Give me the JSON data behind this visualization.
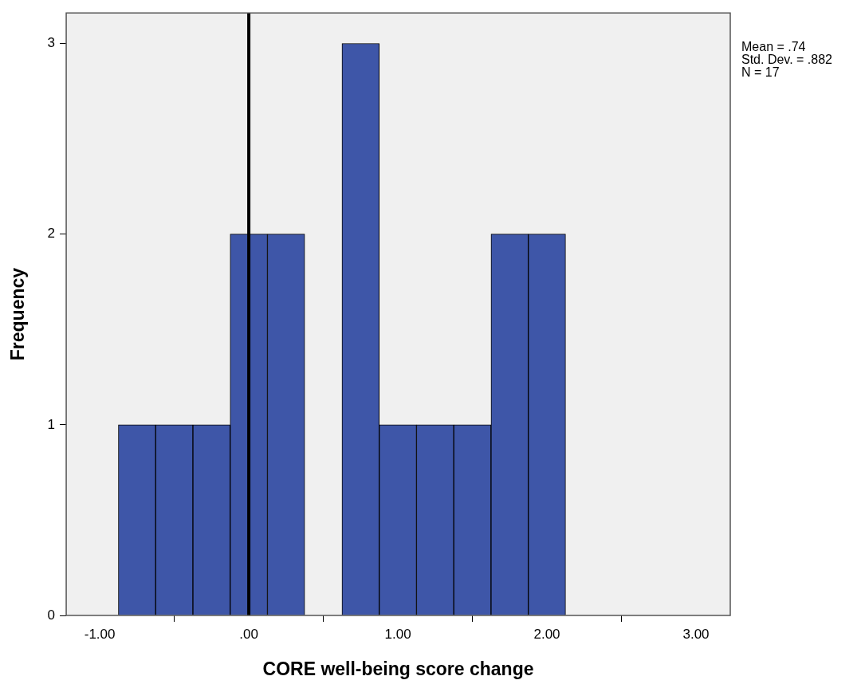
{
  "chart_data": {
    "type": "histogram",
    "xlabel": "CORE well-being score change",
    "ylabel": "Frequency",
    "bins": [
      -0.875,
      -0.625,
      -0.375,
      -0.125,
      0.125,
      0.375,
      0.625,
      0.875,
      1.125,
      1.375,
      1.625,
      1.875,
      2.125
    ],
    "values": [
      1,
      1,
      1,
      2,
      2,
      0,
      3,
      1,
      1,
      1,
      2,
      2
    ],
    "color": "#3e56a8",
    "xlim": [
      -1.225,
      3.23
    ],
    "xticks": [
      {
        "value": -1,
        "label": "-1.00"
      },
      {
        "value": 0,
        "label": ".00"
      },
      {
        "value": 1,
        "label": "1.00"
      },
      {
        "value": 2,
        "label": "2.00"
      },
      {
        "value": 3,
        "label": "3.00"
      }
    ],
    "ylim": [
      0,
      3.16
    ],
    "yticks": [
      0,
      1,
      2,
      3
    ],
    "grid": false,
    "legend": false,
    "ref_lines": [
      {
        "axis": "x",
        "value": 0,
        "color": "#000000"
      }
    ],
    "annotations": [
      "Mean = .74",
      "Std. Dev. = .882",
      "N = 17"
    ]
  }
}
